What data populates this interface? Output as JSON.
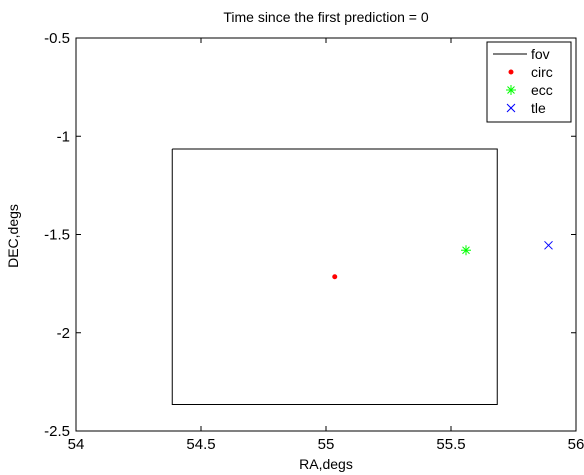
{
  "chart_data": {
    "type": "scatter",
    "title": "Time since the first prediction = 0",
    "xlabel": "RA,degs",
    "ylabel": "DEC,degs",
    "xlim": [
      54,
      56
    ],
    "ylim": [
      -2.5,
      -0.5
    ],
    "x_ticks": [
      54,
      54.5,
      55,
      55.5,
      56
    ],
    "x_tick_labels": [
      "54",
      "54.5",
      "55",
      "55.5",
      "56"
    ],
    "y_ticks": [
      -0.5,
      -1,
      -1.5,
      -2,
      -2.5
    ],
    "y_tick_labels": [
      "-0.5",
      "-1",
      "-1.5",
      "-2",
      "-2.5"
    ],
    "grid": false,
    "legend_position": "top-right",
    "series": [
      {
        "name": "fov",
        "kind": "line",
        "color": "#000000",
        "x": [
          54.385,
          55.685,
          55.685,
          54.385,
          54.385
        ],
        "y": [
          -1.065,
          -1.065,
          -2.365,
          -2.365,
          -1.065
        ]
      },
      {
        "name": "circ",
        "kind": "point",
        "marker": "dot",
        "color": "#ff0000",
        "x": [
          55.035
        ],
        "y": [
          -1.715
        ]
      },
      {
        "name": "ecc",
        "kind": "point",
        "marker": "asterisk",
        "color": "#00ff00",
        "x": [
          55.56
        ],
        "y": [
          -1.58
        ]
      },
      {
        "name": "tle",
        "kind": "point",
        "marker": "x",
        "color": "#0000ff",
        "x": [
          55.89
        ],
        "y": [
          -1.555
        ]
      }
    ]
  }
}
